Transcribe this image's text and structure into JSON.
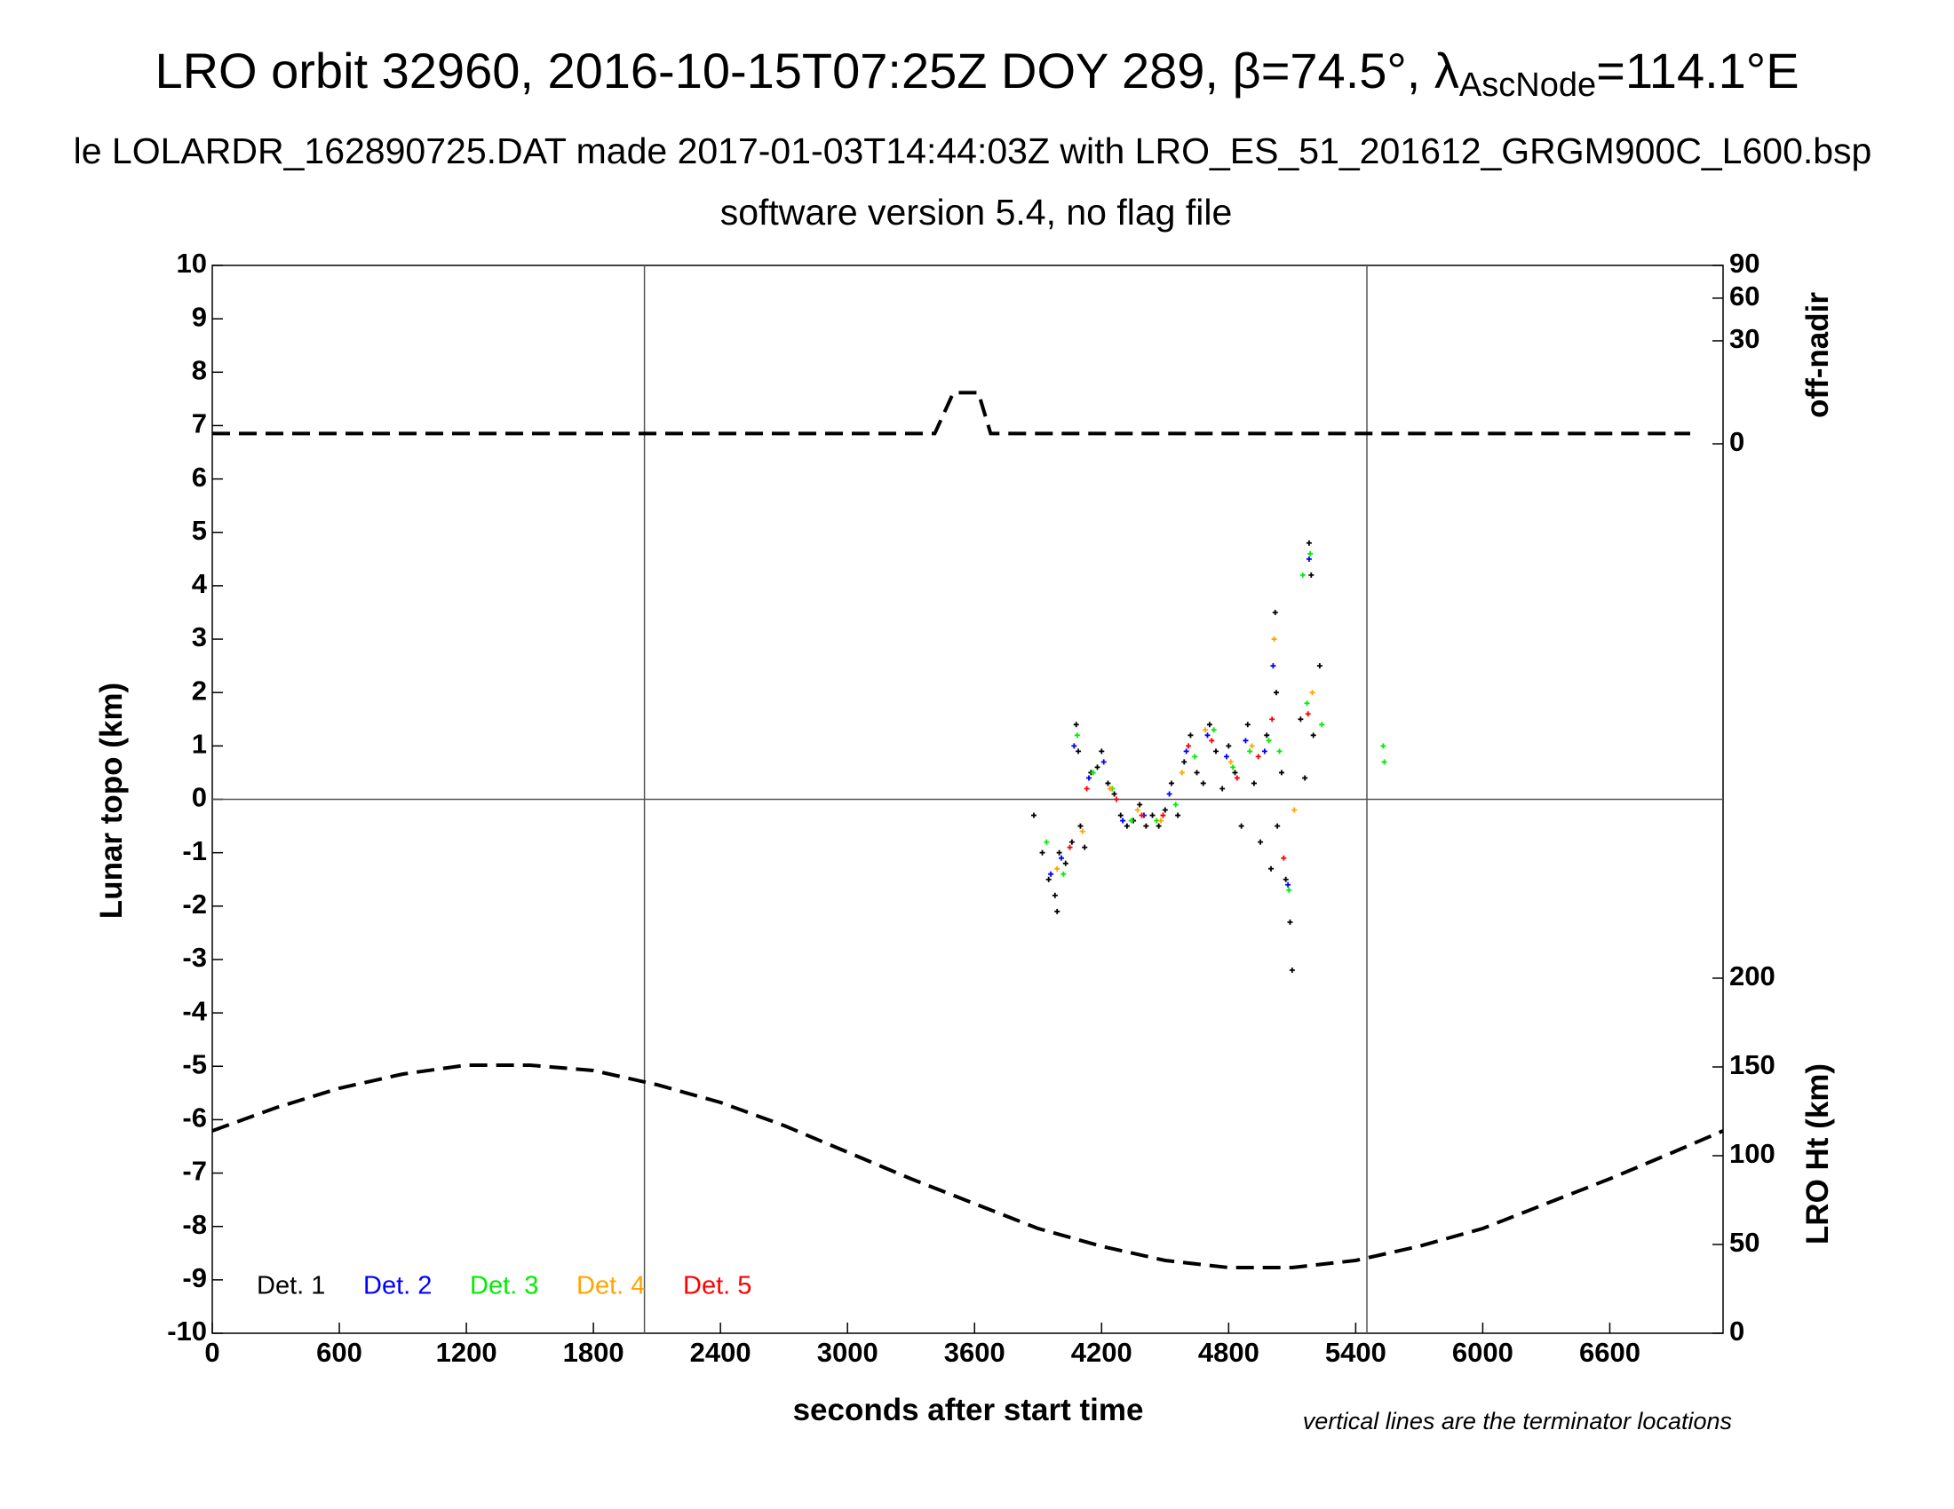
{
  "chart_data": {
    "type": "scatter",
    "title": "LRO orbit 32960, 2016-10-15T07:25Z DOY 289, β=74.5°, λ",
    "title_subscript": "AscNode",
    "title_end": "=114.1°E",
    "subtitle": "le LOLARDR_162890725.DAT made 2017-01-03T14:44:03Z with LRO_ES_51_201612_GRGM900C_L600.bsp",
    "subtitle2": "software version 5.4, no flag file",
    "xlabel": "seconds after start time",
    "ylabel": "Lunar topo (km)",
    "y2label": "off-nadir",
    "y3label": "LRO Ht (km)",
    "note": "vertical lines are the terminator locations",
    "xlim": [
      0,
      7135
    ],
    "xticks": [
      0,
      600,
      1200,
      1800,
      2400,
      3000,
      3600,
      4200,
      4800,
      5400,
      6000,
      6600
    ],
    "ylim": [
      -10,
      10
    ],
    "yticks": [
      10,
      9,
      8,
      7,
      6,
      5,
      4,
      3,
      2,
      1,
      0,
      -1,
      -2,
      -3,
      -4,
      -5,
      -6,
      -7,
      -8,
      -9,
      -10
    ],
    "y2lim": [
      0,
      90
    ],
    "y2ticks": [
      0,
      30,
      60,
      90
    ],
    "y2scale": "sqrt",
    "y3lim": [
      0,
      200
    ],
    "y3ticks": [
      0,
      50,
      100,
      150,
      200
    ],
    "terminators": [
      2041,
      5453
    ],
    "series": [
      {
        "name": "Det. 1",
        "color": "#000000",
        "x": [
          3880,
          3920,
          3950,
          3980,
          3990,
          4000,
          4030,
          4060,
          4080,
          4090,
          4100,
          4120,
          4150,
          4180,
          4200,
          4230,
          4260,
          4290,
          4320,
          4350,
          4380,
          4410,
          4440,
          4470,
          4500,
          4530,
          4560,
          4590,
          4620,
          4650,
          4680,
          4710,
          4740,
          4770,
          4800,
          4830,
          4860,
          4890,
          4920,
          4950,
          4980,
          5000,
          5020,
          5025,
          5030,
          5050,
          5070,
          5090,
          5100,
          5140,
          5160,
          5180,
          5190,
          5200,
          5230
        ],
        "values": [
          -0.3,
          -1.0,
          -1.5,
          -1.8,
          -2.1,
          -1.0,
          -1.2,
          -0.8,
          1.4,
          0.9,
          -0.5,
          -0.9,
          0.5,
          0.6,
          0.9,
          0.3,
          0.1,
          -0.3,
          -0.5,
          -0.4,
          -0.1,
          -0.5,
          -0.3,
          -0.5,
          -0.2,
          0.3,
          -0.3,
          0.7,
          1.2,
          0.5,
          0.3,
          1.4,
          0.9,
          0.2,
          1.0,
          0.5,
          -0.5,
          1.4,
          0.3,
          -0.8,
          1.2,
          -1.3,
          3.5,
          2.0,
          -0.5,
          0.5,
          -1.5,
          -2.3,
          -3.2,
          1.5,
          0.4,
          4.8,
          4.2,
          1.2,
          2.5
        ]
      },
      {
        "name": "Det. 2",
        "color": "#0000ff",
        "x": [
          3960,
          4010,
          4070,
          4140,
          4210,
          4300,
          4400,
          4520,
          4600,
          4700,
          4790,
          4880,
          4970,
          5010,
          5080,
          5180
        ],
        "values": [
          -1.4,
          -1.1,
          1.0,
          0.4,
          0.7,
          -0.4,
          -0.3,
          0.1,
          0.9,
          1.2,
          0.8,
          1.1,
          0.9,
          2.5,
          -1.6,
          4.5
        ]
      },
      {
        "name": "Det. 3",
        "color": "#00ee00",
        "x": [
          3940,
          4020,
          4085,
          4160,
          4250,
          4340,
          4460,
          4550,
          4640,
          4730,
          4820,
          4900,
          4990,
          5040,
          5085,
          5150,
          5170,
          5185,
          5240,
          5530,
          5535
        ],
        "values": [
          -0.8,
          -1.4,
          1.2,
          0.5,
          0.2,
          -0.4,
          -0.4,
          -0.1,
          0.8,
          1.3,
          0.6,
          0.9,
          1.1,
          0.9,
          -1.7,
          4.2,
          1.8,
          4.6,
          1.4,
          1.0,
          0.7
        ]
      },
      {
        "name": "Det. 4",
        "color": "#ffa500",
        "x": [
          3990,
          4110,
          4240,
          4370,
          4480,
          4580,
          4690,
          4810,
          4910,
          5015,
          5110,
          5195
        ],
        "values": [
          -1.3,
          -0.6,
          0.2,
          -0.2,
          -0.4,
          0.5,
          1.3,
          0.7,
          1.0,
          3.0,
          -0.2,
          2.0
        ]
      },
      {
        "name": "Det. 5",
        "color": "#ff0000",
        "x": [
          4050,
          4130,
          4270,
          4390,
          4490,
          4610,
          4720,
          4840,
          4940,
          5005,
          5060,
          5175
        ],
        "values": [
          -0.9,
          0.2,
          0.0,
          -0.3,
          -0.3,
          1.0,
          1.1,
          0.4,
          0.8,
          1.5,
          -1.1,
          1.6
        ]
      }
    ],
    "off_nadir": {
      "axis": "y2",
      "x": [
        0,
        3412,
        3500,
        3618,
        3676,
        6980
      ],
      "values": [
        0.3,
        0.3,
        7.4,
        7.4,
        0.3,
        0.3
      ]
    },
    "altitude": {
      "axis": "y3",
      "x": [
        0,
        300,
        600,
        900,
        1200,
        1500,
        1800,
        2100,
        2400,
        2700,
        3000,
        3300,
        3600,
        3900,
        4200,
        4500,
        4800,
        5100,
        5400,
        5700,
        6000,
        6300,
        6600,
        6900,
        7135
      ],
      "values": [
        114,
        127,
        138,
        146,
        151,
        151,
        148,
        140,
        130,
        117,
        102,
        87,
        73,
        59,
        49,
        41,
        37,
        37,
        41,
        49,
        59,
        73,
        87,
        102,
        114
      ]
    }
  }
}
